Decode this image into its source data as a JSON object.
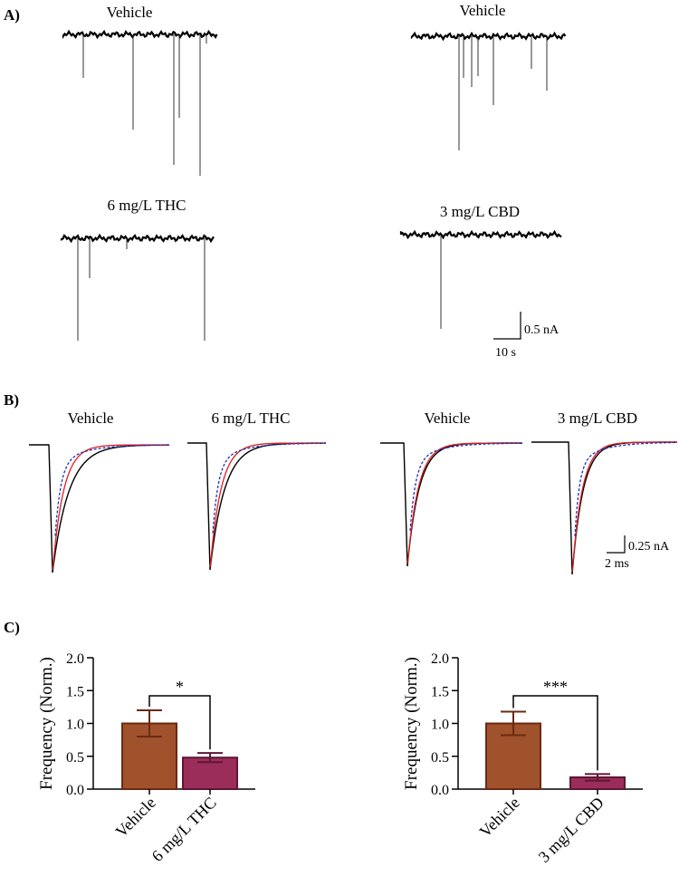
{
  "panels": {
    "a": {
      "label": "A)",
      "trace_labels": [
        "Vehicle",
        "Vehicle",
        "6 mg/L THC",
        "3 mg/L CBD"
      ],
      "scale_amplitude": "0.5 nA",
      "scale_time": "10 s"
    },
    "b": {
      "label": "B)",
      "trace_labels": [
        "Vehicle",
        "6 mg/L THC",
        "Vehicle",
        "3 mg/L CBD"
      ],
      "scale_amplitude": "0.25 nA",
      "scale_time": "2 ms",
      "colors": {
        "trace": "#000000",
        "fit_red": "#e02020",
        "fit_blue": "#2030c0"
      }
    },
    "c": {
      "label": "C)"
    }
  },
  "chart_data": [
    {
      "type": "bar",
      "categories": [
        "Vehicle",
        "6 mg/L THC"
      ],
      "values": [
        1.0,
        0.48
      ],
      "errors": [
        0.2,
        0.07
      ],
      "ylabel": "Frequency (Norm.)",
      "ylim": [
        0,
        2.0
      ],
      "yticks": [
        "0.0",
        "0.5",
        "1.0",
        "1.5",
        "2.0"
      ],
      "significance": "*",
      "colors": [
        "#a0522d",
        "#9b2d5a"
      ],
      "edge_colors": [
        "#6b2a10",
        "#5e1634"
      ]
    },
    {
      "type": "bar",
      "categories": [
        "Vehicle",
        "3 mg/L CBD"
      ],
      "values": [
        1.0,
        0.18
      ],
      "errors": [
        0.18,
        0.05
      ],
      "ylabel": "Frequency (Norm.)",
      "ylim": [
        0,
        2.0
      ],
      "yticks": [
        "0.0",
        "0.5",
        "1.0",
        "1.5",
        "2.0"
      ],
      "significance": "***",
      "colors": [
        "#a0522d",
        "#9b2d5a"
      ],
      "edge_colors": [
        "#6b2a10",
        "#5e1634"
      ]
    }
  ]
}
